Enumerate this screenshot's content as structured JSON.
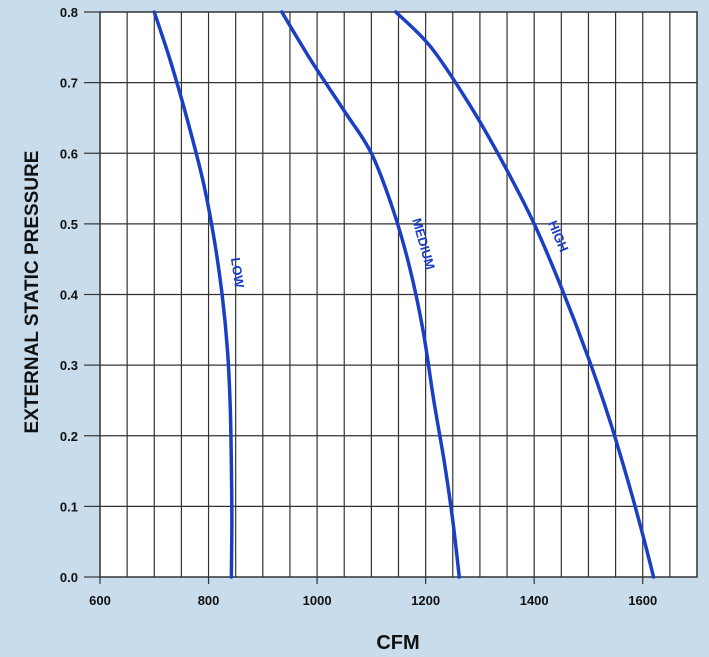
{
  "chart_data": {
    "type": "line",
    "title": "",
    "xlabel": "CFM",
    "ylabel": "EXTERNAL STATIC PRESSURE",
    "xlim": [
      600,
      1700
    ],
    "ylim": [
      0.0,
      0.8
    ],
    "x_ticks": [
      "600",
      "800",
      "1000",
      "1200",
      "1400",
      "1600"
    ],
    "y_ticks": [
      "0.0",
      "0.1",
      "0.2",
      "0.3",
      "0.4",
      "0.5",
      "0.6",
      "0.7",
      "0.8"
    ],
    "grid": true,
    "series": [
      {
        "name": "LOW",
        "x": [
          700,
          730,
          760,
          790,
          810,
          825,
          835,
          840,
          842,
          843,
          842
        ],
        "y": [
          0.8,
          0.73,
          0.65,
          0.56,
          0.48,
          0.4,
          0.32,
          0.24,
          0.16,
          0.08,
          0.0
        ]
      },
      {
        "name": "MEDIUM",
        "x": [
          935,
          990,
          1050,
          1100,
          1140,
          1170,
          1195,
          1215,
          1235,
          1250,
          1262
        ],
        "y": [
          0.8,
          0.73,
          0.66,
          0.6,
          0.52,
          0.44,
          0.35,
          0.25,
          0.16,
          0.08,
          0.0
        ]
      },
      {
        "name": "HIGH",
        "x": [
          1145,
          1210,
          1280,
          1340,
          1400,
          1450,
          1500,
          1540,
          1575,
          1600,
          1620
        ],
        "y": [
          0.8,
          0.75,
          0.67,
          0.59,
          0.5,
          0.41,
          0.31,
          0.22,
          0.13,
          0.06,
          0.0
        ]
      }
    ],
    "line_color": "#1a3fc4",
    "grid_color": "#333333",
    "plot_background": "#ffffff"
  }
}
